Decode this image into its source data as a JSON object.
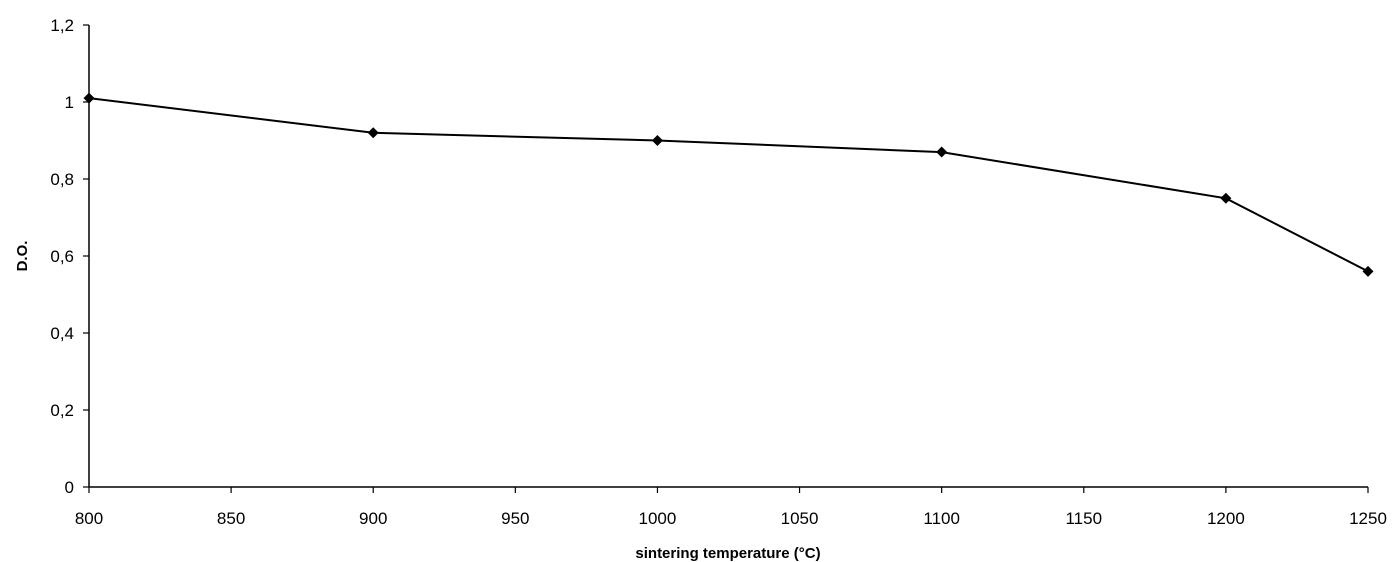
{
  "chart_data": {
    "type": "line",
    "title": "",
    "xlabel": "sintering temperature (°C)",
    "ylabel": "D.O.",
    "xlim": [
      800,
      1250
    ],
    "ylim": [
      0,
      1.2
    ],
    "x_ticks": [
      800,
      850,
      900,
      950,
      1000,
      1050,
      1100,
      1150,
      1200,
      1250
    ],
    "y_ticks": [
      0,
      0.2,
      0.4,
      0.6,
      0.8,
      1,
      1.2
    ],
    "y_tick_labels": [
      "0",
      "0,2",
      "0,4",
      "0,6",
      "0,8",
      "1",
      "1,2"
    ],
    "x_tick_labels": [
      "800",
      "850",
      "900",
      "950",
      "1000",
      "1050",
      "1100",
      "1150",
      "1200",
      "1250"
    ],
    "grid": false,
    "series": [
      {
        "x": [
          800,
          900,
          1000,
          1100,
          1200,
          1250
        ],
        "y": [
          1.01,
          0.92,
          0.9,
          0.87,
          0.75,
          0.56
        ],
        "marker": "diamond",
        "color": "#000000"
      }
    ]
  }
}
